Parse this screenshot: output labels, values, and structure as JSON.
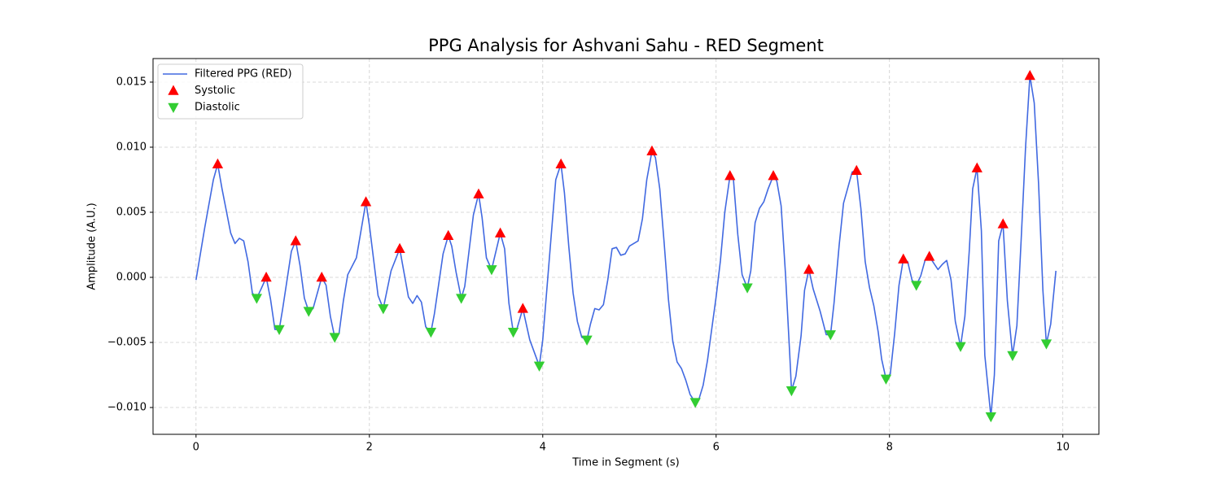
{
  "chart_data": {
    "type": "line",
    "title": "PPG Analysis for Ashvani Sahu - RED Segment",
    "x_label": "Time in Segment (s)",
    "y_label": "Amplitude (A.U.)",
    "xlim": [
      -0.496,
      10.416
    ],
    "ylim": [
      -0.01206,
      0.01681
    ],
    "xticks": [
      0,
      2,
      4,
      6,
      8,
      10
    ],
    "yticks": [
      {
        "value": -0.01,
        "label": "−0.010"
      },
      {
        "value": -0.005,
        "label": "−0.005"
      },
      {
        "value": 0,
        "label": "0.000"
      },
      {
        "value": 0.005,
        "label": "0.005"
      },
      {
        "value": 0.01,
        "label": "0.010"
      },
      0.015
    ],
    "grid": true,
    "legend_position": "upper-left",
    "series": [
      {
        "name": "Filtered PPG (RED)",
        "type": "line",
        "color": "#4169e1",
        "x": [
          0,
          0.1,
          0.2,
          0.25,
          0.3,
          0.4,
          0.45,
          0.5,
          0.55,
          0.6,
          0.65,
          0.7,
          0.75,
          0.81,
          0.86,
          0.91,
          0.96,
          1.0,
          1.1,
          1.15,
          1.2,
          1.25,
          1.3,
          1.35,
          1.45,
          1.5,
          1.55,
          1.6,
          1.65,
          1.7,
          1.75,
          1.85,
          1.96,
          2.0,
          2.1,
          2.16,
          2.25,
          2.35,
          2.45,
          2.5,
          2.55,
          2.6,
          2.65,
          2.71,
          2.75,
          2.85,
          2.91,
          2.95,
          3.0,
          3.06,
          3.1,
          3.2,
          3.26,
          3.3,
          3.35,
          3.41,
          3.51,
          3.56,
          3.61,
          3.66,
          3.7,
          3.77,
          3.85,
          3.96,
          4.0,
          4.1,
          4.15,
          4.21,
          4.25,
          4.3,
          4.35,
          4.4,
          4.45,
          4.51,
          4.55,
          4.6,
          4.65,
          4.7,
          4.75,
          4.8,
          4.85,
          4.9,
          4.95,
          5.0,
          5.1,
          5.15,
          5.2,
          5.26,
          5.3,
          5.35,
          5.4,
          5.45,
          5.5,
          5.55,
          5.6,
          5.65,
          5.7,
          5.76,
          5.8,
          5.85,
          5.9,
          6.0,
          6.05,
          6.1,
          6.16,
          6.2,
          6.25,
          6.3,
          6.36,
          6.4,
          6.45,
          6.5,
          6.55,
          6.6,
          6.66,
          6.7,
          6.75,
          6.8,
          6.85,
          6.87,
          6.92,
          6.98,
          7.02,
          7.07,
          7.12,
          7.2,
          7.27,
          7.32,
          7.36,
          7.42,
          7.47,
          7.57,
          7.62,
          7.67,
          7.72,
          7.77,
          7.82,
          7.87,
          7.91,
          7.96,
          8.01,
          8.06,
          8.11,
          8.16,
          8.21,
          8.26,
          8.31,
          8.36,
          8.41,
          8.46,
          8.51,
          8.56,
          8.61,
          8.66,
          8.71,
          8.76,
          8.82,
          8.87,
          8.92,
          8.96,
          9.01,
          9.06,
          9.1,
          9.17,
          9.21,
          9.26,
          9.31,
          9.36,
          9.42,
          9.47,
          9.52,
          9.57,
          9.62,
          9.67,
          9.72,
          9.77,
          9.81,
          9.86,
          9.92
        ],
        "values": [
          -0.0002,
          0.0038,
          0.0075,
          0.0087,
          0.0068,
          0.0034,
          0.0026,
          0.003,
          0.0028,
          0.0012,
          -0.0012,
          -0.0016,
          -0.0009,
          0.0,
          -0.0017,
          -0.004,
          -0.004,
          -0.0024,
          0.002,
          0.0028,
          0.0009,
          -0.0016,
          -0.0026,
          -0.0024,
          0.0,
          -0.0006,
          -0.003,
          -0.0046,
          -0.0043,
          -0.0018,
          0.0002,
          0.0015,
          0.0058,
          0.004,
          -0.0014,
          -0.0024,
          0.0005,
          0.0022,
          -0.0015,
          -0.002,
          -0.0014,
          -0.0019,
          -0.0038,
          -0.0042,
          -0.0028,
          0.0018,
          0.0032,
          0.0024,
          0.0004,
          -0.0016,
          -0.0007,
          0.0048,
          0.0064,
          0.0046,
          0.0015,
          0.0006,
          0.0034,
          0.0022,
          -0.002,
          -0.0042,
          -0.004,
          -0.0024,
          -0.0048,
          -0.0068,
          -0.0048,
          0.0034,
          0.0075,
          0.0087,
          0.0065,
          0.0024,
          -0.0012,
          -0.0034,
          -0.0046,
          -0.0048,
          -0.0036,
          -0.0024,
          -0.0025,
          -0.0021,
          -0.0002,
          0.0022,
          0.0023,
          0.0017,
          0.0018,
          0.0024,
          0.0028,
          0.0045,
          0.0075,
          0.0097,
          0.0092,
          0.0068,
          0.0027,
          -0.0017,
          -0.0049,
          -0.0065,
          -0.007,
          -0.0079,
          -0.009,
          -0.0096,
          -0.0094,
          -0.0083,
          -0.0064,
          -0.0015,
          0.0013,
          0.005,
          0.0078,
          0.0075,
          0.0033,
          0.0002,
          -0.0008,
          0.0005,
          0.0042,
          0.0053,
          0.0058,
          0.0068,
          0.0078,
          0.0074,
          0.0055,
          0.0003,
          -0.006,
          -0.0087,
          -0.0076,
          -0.0045,
          -0.001,
          0.0006,
          -0.0009,
          -0.0026,
          -0.0044,
          -0.0044,
          -0.002,
          0.0025,
          0.0057,
          0.0081,
          0.0082,
          0.0053,
          0.0012,
          -0.0008,
          -0.0022,
          -0.0042,
          -0.0063,
          -0.0078,
          -0.0074,
          -0.0043,
          -0.0006,
          0.0014,
          0.0012,
          -0.0002,
          -0.0006,
          0.0001,
          0.0013,
          0.0016,
          0.0011,
          0.0006,
          0.001,
          0.0013,
          -0.0002,
          -0.0034,
          -0.0053,
          -0.003,
          0.002,
          0.0068,
          0.0084,
          0.0036,
          -0.006,
          -0.0107,
          -0.0075,
          0.0028,
          0.0041,
          -0.0018,
          -0.006,
          -0.0037,
          0.003,
          0.01,
          0.0155,
          0.0134,
          0.0072,
          -0.001,
          -0.0051,
          -0.0036,
          0.0005
        ]
      },
      {
        "name": "Systolic",
        "type": "scatter",
        "marker": "triangle-up",
        "color": "#ff0000",
        "x": [
          0.25,
          0.81,
          1.15,
          1.45,
          1.96,
          2.35,
          2.91,
          3.26,
          3.51,
          3.77,
          4.21,
          5.26,
          6.16,
          6.66,
          7.07,
          7.62,
          8.16,
          8.46,
          9.01,
          9.31,
          9.62
        ],
        "values": [
          0.0087,
          0.0,
          0.0028,
          0.0,
          0.0058,
          0.0022,
          0.0032,
          0.0064,
          0.0034,
          -0.0024,
          0.0087,
          0.0097,
          0.0078,
          0.0078,
          0.0006,
          0.0082,
          0.0014,
          0.0016,
          0.0084,
          0.0041,
          0.0155
        ]
      },
      {
        "name": "Diastolic",
        "type": "scatter",
        "marker": "triangle-down",
        "color": "#32cd32",
        "x": [
          0.7,
          0.96,
          1.3,
          1.6,
          2.16,
          2.71,
          3.06,
          3.41,
          3.66,
          3.96,
          4.51,
          5.76,
          6.36,
          6.87,
          7.32,
          7.96,
          8.31,
          8.82,
          9.17,
          9.42,
          9.81
        ],
        "values": [
          -0.0016,
          -0.004,
          -0.0026,
          -0.0046,
          -0.0024,
          -0.0042,
          -0.0016,
          0.0006,
          -0.0042,
          -0.0068,
          -0.0048,
          -0.0096,
          -0.0008,
          -0.0087,
          -0.0044,
          -0.0078,
          -0.0006,
          -0.0053,
          -0.0107,
          -0.006,
          -0.0051
        ]
      }
    ]
  }
}
